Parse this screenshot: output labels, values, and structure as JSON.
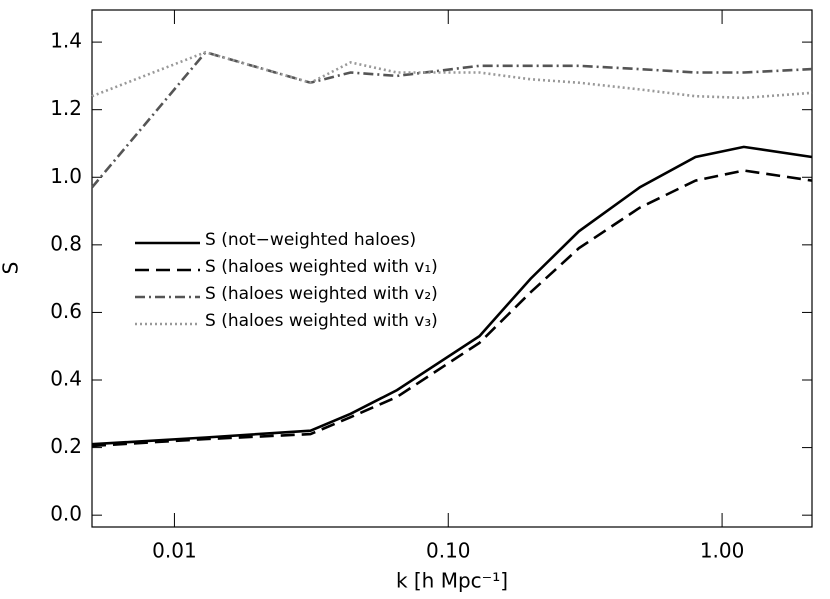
{
  "chart_data": {
    "type": "line",
    "x_label": "k  [h Mpc⁻¹]",
    "y_label": "S",
    "x_scale": "log",
    "x": [
      0.005,
      0.013,
      0.0314,
      0.044,
      0.065,
      0.13,
      0.2,
      0.3,
      0.5,
      0.8,
      1.2,
      2.13
    ],
    "series": [
      {
        "name": "S (not−weighted haloes)",
        "color": "#000000",
        "dash": "solid",
        "values": [
          0.21,
          0.23,
          0.25,
          0.3,
          0.37,
          0.53,
          0.7,
          0.84,
          0.97,
          1.06,
          1.09,
          1.06
        ]
      },
      {
        "name": "S (haloes weighted with v₁)",
        "color": "#000000",
        "dash": "dashed",
        "values": [
          0.205,
          0.225,
          0.24,
          0.29,
          0.35,
          0.51,
          0.66,
          0.79,
          0.91,
          0.99,
          1.02,
          0.99
        ]
      },
      {
        "name": "S (haloes weighted with v₂)",
        "color": "#555555",
        "dash": "dashdot",
        "values": [
          0.97,
          1.37,
          1.28,
          1.31,
          1.3,
          1.33,
          1.33,
          1.33,
          1.32,
          1.31,
          1.31,
          1.32
        ]
      },
      {
        "name": "S (haloes weighted with v₃)",
        "color": "#999999",
        "dash": "dotted",
        "values": [
          1.24,
          1.37,
          1.28,
          1.34,
          1.31,
          1.31,
          1.29,
          1.28,
          1.26,
          1.24,
          1.235,
          1.25
        ]
      }
    ],
    "xlim": [
      0.005,
      2.13
    ],
    "xticks": [
      0.01,
      {
        "value": 0.1,
        "label": "0.10"
      },
      {
        "value": 1,
        "label": "1.00"
      }
    ],
    "ylim": [
      -0.035,
      1.495
    ],
    "yticks": [
      {
        "value": 0,
        "label": "0.0"
      },
      0.2,
      0.4,
      0.6,
      0.8,
      {
        "value": 1,
        "label": "1.0"
      },
      1.2,
      1.4
    ],
    "grid": false
  }
}
